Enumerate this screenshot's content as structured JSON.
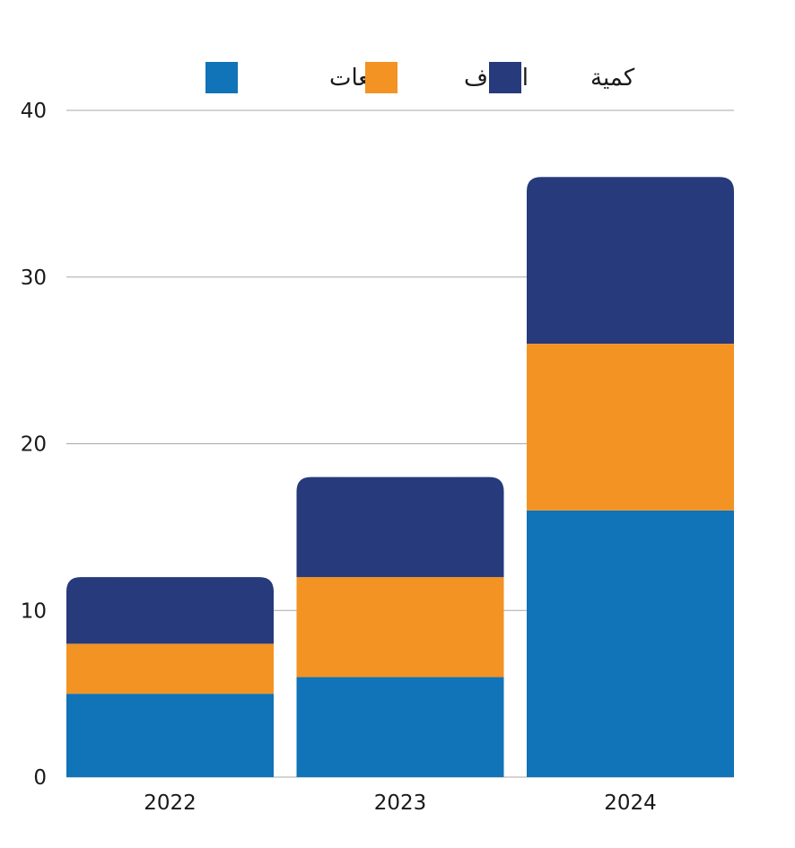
{
  "chart_data": {
    "type": "bar",
    "stacked": true,
    "title": "",
    "xlabel": "",
    "ylabel": "",
    "categories": [
      "2022",
      "2023",
      "2024"
    ],
    "ylim": [
      0,
      40
    ],
    "yticks": [
      0,
      10,
      20,
      30,
      40
    ],
    "grid": true,
    "legend_position": "top-center",
    "series": [
      {
        "name": "مبيعات",
        "color": "#1173b8",
        "values": [
          5,
          6,
          16
        ]
      },
      {
        "name": "اصناف",
        "color": "#f39323",
        "values": [
          3,
          6,
          10
        ]
      },
      {
        "name": "كمية",
        "color": "#263a7c",
        "values": [
          4,
          6,
          10
        ]
      }
    ],
    "legend_order": [
      "مبيعات",
      "اصناف",
      "كمية"
    ]
  }
}
